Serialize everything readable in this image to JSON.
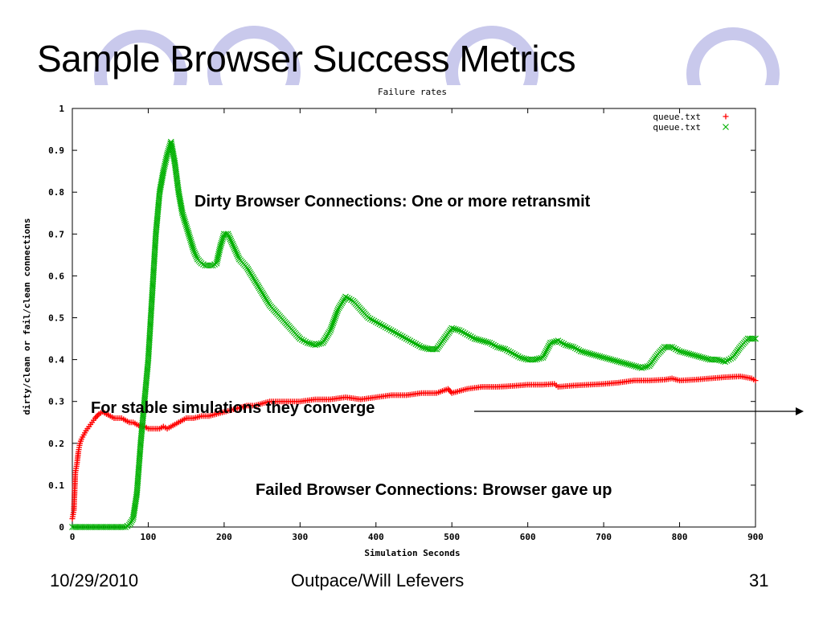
{
  "slide": {
    "title": "Sample Browser Success Metrics",
    "footer_date": "10/29/2010",
    "footer_author": "Outpace/Will Lefevers",
    "page_number": "31",
    "annotation_dirty": "Dirty Browser Connections: One or more retransmit",
    "annotation_stable": "For stable simulations they converge",
    "annotation_failed": "Failed Browser Connections: Browser gave up",
    "theme_circle_color": "#c9c9ec"
  },
  "chart_data": {
    "type": "scatter",
    "title": "Failure rates",
    "xlabel": "Simulation Seconds",
    "ylabel": "dirty/clean or fail/clean connections",
    "xlim": [
      0,
      900
    ],
    "ylim": [
      0,
      1
    ],
    "xticks": [
      "0",
      "100",
      "200",
      "300",
      "400",
      "500",
      "600",
      "700",
      "800",
      "900"
    ],
    "yticks": [
      "0",
      "0.1",
      "0.2",
      "0.3",
      "0.4",
      "0.5",
      "0.6",
      "0.7",
      "0.8",
      "0.9",
      "1"
    ],
    "legend_position": "top-right",
    "grid": false,
    "series": [
      {
        "name": "queue.txt",
        "marker": "plus",
        "color": "#ff0000",
        "points": [
          [
            0,
            0.02
          ],
          [
            2,
            0.04
          ],
          [
            4,
            0.13
          ],
          [
            6,
            0.15
          ],
          [
            8,
            0.18
          ],
          [
            10,
            0.2
          ],
          [
            12,
            0.21
          ],
          [
            15,
            0.22
          ],
          [
            18,
            0.23
          ],
          [
            22,
            0.24
          ],
          [
            26,
            0.25
          ],
          [
            30,
            0.26
          ],
          [
            35,
            0.27
          ],
          [
            40,
            0.275
          ],
          [
            45,
            0.27
          ],
          [
            50,
            0.265
          ],
          [
            55,
            0.26
          ],
          [
            60,
            0.26
          ],
          [
            65,
            0.26
          ],
          [
            70,
            0.255
          ],
          [
            75,
            0.25
          ],
          [
            80,
            0.25
          ],
          [
            85,
            0.245
          ],
          [
            90,
            0.24
          ],
          [
            95,
            0.24
          ],
          [
            100,
            0.235
          ],
          [
            105,
            0.235
          ],
          [
            110,
            0.235
          ],
          [
            115,
            0.235
          ],
          [
            120,
            0.24
          ],
          [
            125,
            0.235
          ],
          [
            130,
            0.24
          ],
          [
            135,
            0.245
          ],
          [
            140,
            0.25
          ],
          [
            145,
            0.255
          ],
          [
            150,
            0.26
          ],
          [
            160,
            0.26
          ],
          [
            170,
            0.265
          ],
          [
            180,
            0.265
          ],
          [
            190,
            0.27
          ],
          [
            200,
            0.275
          ],
          [
            210,
            0.28
          ],
          [
            220,
            0.285
          ],
          [
            230,
            0.29
          ],
          [
            240,
            0.29
          ],
          [
            250,
            0.295
          ],
          [
            260,
            0.3
          ],
          [
            280,
            0.3
          ],
          [
            300,
            0.3
          ],
          [
            320,
            0.305
          ],
          [
            340,
            0.305
          ],
          [
            360,
            0.31
          ],
          [
            380,
            0.305
          ],
          [
            400,
            0.31
          ],
          [
            420,
            0.315
          ],
          [
            440,
            0.315
          ],
          [
            460,
            0.32
          ],
          [
            480,
            0.32
          ],
          [
            495,
            0.33
          ],
          [
            500,
            0.32
          ],
          [
            510,
            0.325
          ],
          [
            520,
            0.33
          ],
          [
            540,
            0.335
          ],
          [
            560,
            0.335
          ],
          [
            580,
            0.337
          ],
          [
            600,
            0.34
          ],
          [
            620,
            0.34
          ],
          [
            635,
            0.342
          ],
          [
            640,
            0.335
          ],
          [
            660,
            0.338
          ],
          [
            680,
            0.34
          ],
          [
            700,
            0.342
          ],
          [
            720,
            0.345
          ],
          [
            740,
            0.35
          ],
          [
            760,
            0.35
          ],
          [
            780,
            0.352
          ],
          [
            790,
            0.355
          ],
          [
            800,
            0.35
          ],
          [
            820,
            0.352
          ],
          [
            840,
            0.355
          ],
          [
            860,
            0.358
          ],
          [
            880,
            0.36
          ],
          [
            895,
            0.355
          ],
          [
            900,
            0.35
          ]
        ]
      },
      {
        "name": "queue.txt",
        "marker": "cross",
        "color": "#00b000",
        "points": [
          [
            0,
            0
          ],
          [
            20,
            0
          ],
          [
            40,
            0
          ],
          [
            60,
            0
          ],
          [
            70,
            0
          ],
          [
            75,
            0.005
          ],
          [
            80,
            0.02
          ],
          [
            85,
            0.08
          ],
          [
            90,
            0.2
          ],
          [
            95,
            0.3
          ],
          [
            100,
            0.4
          ],
          [
            105,
            0.55
          ],
          [
            110,
            0.7
          ],
          [
            115,
            0.8
          ],
          [
            120,
            0.85
          ],
          [
            125,
            0.89
          ],
          [
            130,
            0.92
          ],
          [
            135,
            0.87
          ],
          [
            140,
            0.8
          ],
          [
            145,
            0.75
          ],
          [
            150,
            0.72
          ],
          [
            155,
            0.69
          ],
          [
            160,
            0.66
          ],
          [
            165,
            0.64
          ],
          [
            170,
            0.63
          ],
          [
            175,
            0.625
          ],
          [
            180,
            0.625
          ],
          [
            185,
            0.625
          ],
          [
            190,
            0.63
          ],
          [
            195,
            0.67
          ],
          [
            200,
            0.7
          ],
          [
            205,
            0.7
          ],
          [
            210,
            0.68
          ],
          [
            215,
            0.66
          ],
          [
            220,
            0.64
          ],
          [
            230,
            0.62
          ],
          [
            240,
            0.59
          ],
          [
            250,
            0.56
          ],
          [
            260,
            0.53
          ],
          [
            270,
            0.51
          ],
          [
            280,
            0.49
          ],
          [
            290,
            0.47
          ],
          [
            300,
            0.45
          ],
          [
            310,
            0.44
          ],
          [
            320,
            0.435
          ],
          [
            330,
            0.44
          ],
          [
            340,
            0.47
          ],
          [
            350,
            0.52
          ],
          [
            360,
            0.55
          ],
          [
            370,
            0.54
          ],
          [
            380,
            0.52
          ],
          [
            390,
            0.5
          ],
          [
            400,
            0.49
          ],
          [
            410,
            0.48
          ],
          [
            420,
            0.47
          ],
          [
            430,
            0.46
          ],
          [
            440,
            0.45
          ],
          [
            450,
            0.44
          ],
          [
            460,
            0.43
          ],
          [
            470,
            0.425
          ],
          [
            480,
            0.425
          ],
          [
            490,
            0.45
          ],
          [
            500,
            0.475
          ],
          [
            510,
            0.47
          ],
          [
            520,
            0.46
          ],
          [
            530,
            0.45
          ],
          [
            540,
            0.445
          ],
          [
            550,
            0.44
          ],
          [
            560,
            0.43
          ],
          [
            570,
            0.425
          ],
          [
            580,
            0.415
          ],
          [
            590,
            0.405
          ],
          [
            600,
            0.4
          ],
          [
            610,
            0.4
          ],
          [
            620,
            0.405
          ],
          [
            630,
            0.44
          ],
          [
            640,
            0.445
          ],
          [
            650,
            0.435
          ],
          [
            660,
            0.43
          ],
          [
            670,
            0.42
          ],
          [
            680,
            0.415
          ],
          [
            690,
            0.41
          ],
          [
            700,
            0.405
          ],
          [
            710,
            0.4
          ],
          [
            720,
            0.395
          ],
          [
            730,
            0.39
          ],
          [
            740,
            0.385
          ],
          [
            750,
            0.38
          ],
          [
            760,
            0.385
          ],
          [
            770,
            0.41
          ],
          [
            780,
            0.43
          ],
          [
            790,
            0.43
          ],
          [
            800,
            0.42
          ],
          [
            810,
            0.415
          ],
          [
            820,
            0.41
          ],
          [
            830,
            0.405
          ],
          [
            840,
            0.4
          ],
          [
            850,
            0.4
          ],
          [
            860,
            0.395
          ],
          [
            870,
            0.405
          ],
          [
            880,
            0.43
          ],
          [
            890,
            0.45
          ],
          [
            900,
            0.45
          ]
        ]
      }
    ]
  }
}
